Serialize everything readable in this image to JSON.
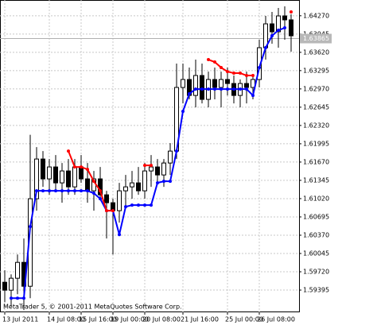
{
  "chart_data": {
    "type": "candlestick",
    "annotation": "MetaTrader 5, © 2001-2011 MetaQuotes Software Corp.",
    "categories": [
      "13 Jul 2011",
      null,
      null,
      null,
      null,
      null,
      null,
      "14 Jul 08:00",
      null,
      null,
      null,
      null,
      "15 Jul 16:00",
      null,
      null,
      null,
      null,
      "19 Jul 00:00",
      null,
      null,
      null,
      null,
      "20 Jul 08:00",
      null,
      null,
      null,
      null,
      null,
      "21 Jul 16:00",
      null,
      null,
      null,
      null,
      null,
      null,
      "25 Jul 00:00",
      null,
      null,
      null,
      null,
      "26 Jul 08:00",
      null,
      null,
      null,
      null,
      null
    ],
    "open": [
      1.59534,
      1.59393,
      1.59605,
      1.59887,
      1.59463,
      1.61018,
      1.61724,
      1.61371,
      1.61583,
      1.613,
      1.61512,
      1.61229,
      1.61583,
      1.61371,
      1.61159,
      1.61371,
      1.61088,
      1.60947,
      1.60806,
      1.61159,
      1.61229,
      1.613,
      1.61159,
      1.61512,
      1.61583,
      1.61441,
      1.61653,
      1.61865,
      1.62996,
      1.63137,
      1.62854,
      1.63208,
      1.62784,
      1.63137,
      1.62996,
      1.63137,
      1.63066,
      1.62854,
      1.63066,
      1.62996,
      1.63137,
      1.63702,
      1.64126,
      1.63985,
      1.64267,
      1.64197
    ],
    "high": [
      1.59746,
      1.59675,
      1.60028,
      1.60311,
      1.62154,
      1.61936,
      1.61865,
      1.61724,
      1.61795,
      1.61653,
      1.61724,
      1.61724,
      1.61795,
      1.61653,
      1.61512,
      1.61583,
      1.61159,
      1.61018,
      1.613,
      1.61441,
      1.61512,
      1.61583,
      1.61653,
      1.61795,
      1.61724,
      1.61724,
      1.62007,
      1.6342,
      1.6342,
      1.63349,
      1.6349,
      1.6342,
      1.63278,
      1.63349,
      1.63278,
      1.63349,
      1.63208,
      1.63137,
      1.63278,
      1.63208,
      1.63844,
      1.64267,
      1.64338,
      1.64409,
      1.64437,
      1.64296
    ],
    "low": [
      1.59181,
      1.5911,
      1.59322,
      1.59039,
      1.59251,
      1.60806,
      1.61229,
      1.61088,
      1.61159,
      1.60947,
      1.61088,
      1.61088,
      1.613,
      1.60947,
      1.60806,
      1.61018,
      1.60311,
      1.60028,
      1.60594,
      1.60876,
      1.61018,
      1.61088,
      1.61018,
      1.61229,
      1.613,
      1.61229,
      1.61441,
      1.61724,
      1.62713,
      1.62784,
      1.62642,
      1.62713,
      1.62642,
      1.62784,
      1.62642,
      1.62854,
      1.62713,
      1.62642,
      1.62713,
      1.62784,
      1.62996,
      1.6349,
      1.63773,
      1.63702,
      1.63844,
      1.63632
    ],
    "close": [
      1.59393,
      1.59605,
      1.59887,
      1.59463,
      1.61018,
      1.61724,
      1.61371,
      1.61583,
      1.613,
      1.61512,
      1.61229,
      1.61583,
      1.61371,
      1.61159,
      1.61371,
      1.61088,
      1.60947,
      1.60806,
      1.61159,
      1.61229,
      1.613,
      1.61159,
      1.61512,
      1.61583,
      1.61441,
      1.61653,
      1.61865,
      1.62996,
      1.63137,
      1.62854,
      1.63208,
      1.62784,
      1.63137,
      1.62996,
      1.63137,
      1.63066,
      1.62854,
      1.63066,
      1.62996,
      1.63137,
      1.63702,
      1.64126,
      1.63985,
      1.64267,
      1.64197,
      1.63914
    ],
    "series": [
      {
        "color": "#0000ff",
        "values": [
          null,
          1.59251,
          1.59251,
          1.59251,
          1.60523,
          1.61159,
          1.61159,
          1.61159,
          1.61159,
          1.61159,
          1.61159,
          1.61159,
          1.61159,
          1.61159,
          1.61116,
          1.61018,
          1.60806,
          1.60806,
          1.60381,
          1.60876,
          1.60904,
          1.60904,
          1.60904,
          1.60904,
          1.613,
          1.61328,
          1.61328,
          1.61865,
          1.62572,
          1.62883,
          1.62967,
          1.62967,
          1.62967,
          1.62967,
          1.62967,
          1.62967,
          1.62967,
          1.62967,
          1.62967,
          1.62854,
          1.63349,
          1.63702,
          1.63914,
          1.64013,
          1.64055,
          null
        ]
      },
      {
        "color": "#ff0000",
        "values": [
          null,
          null,
          null,
          null,
          null,
          null,
          null,
          null,
          null,
          null,
          1.61865,
          1.61583,
          1.61583,
          1.6154,
          1.61328,
          1.61159,
          1.60806,
          1.60806,
          null,
          null,
          null,
          null,
          1.61611,
          1.61611,
          null,
          null,
          null,
          null,
          null,
          null,
          null,
          null,
          1.6349,
          1.63448,
          1.63349,
          1.63278,
          1.6325,
          1.6325,
          1.63208,
          1.63208,
          null,
          null,
          null,
          null,
          null,
          1.64338
        ]
      }
    ],
    "up_color": "#ffffff",
    "down_color": "#000000",
    "current_price": 1.63865,
    "ylim": [
      1.59,
      1.6455
    ],
    "yticks": [
      {
        "value": 1.6427,
        "label": "1.64270"
      },
      1.63945,
      {
        "value": 1.6362,
        "label": "1.63620"
      },
      1.63295,
      {
        "value": 1.6297,
        "label": "1.62970"
      },
      1.62645,
      {
        "value": 1.6232,
        "label": "1.62320"
      },
      1.61995,
      {
        "value": 1.6167,
        "label": "1.61670"
      },
      1.61345,
      {
        "value": 1.6102,
        "label": "1.61020"
      },
      1.60695,
      {
        "value": 1.6037,
        "label": "1.60370"
      },
      1.60045,
      {
        "value": 1.5972,
        "label": "1.59720"
      },
      1.59395
    ],
    "grid": true
  }
}
